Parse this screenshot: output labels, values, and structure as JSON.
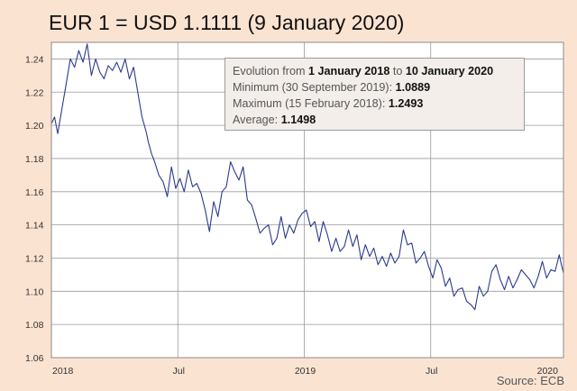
{
  "chart_data": {
    "type": "line",
    "title": "EUR 1 = USD 1.1111 (9 January 2020)",
    "xlabel": "",
    "ylabel": "",
    "ylim": [
      1.06,
      1.25
    ],
    "yticks": [
      "1.06",
      "1.08",
      "1.10",
      "1.12",
      "1.14",
      "1.16",
      "1.18",
      "1.20",
      "1.22",
      "1.24"
    ],
    "xticks": [
      "2018",
      "Jul",
      "2019",
      "Jul",
      "2020"
    ],
    "x_month_range": [
      0,
      24.3
    ],
    "series": [
      {
        "name": "EUR/USD",
        "color": "#2b3a8e",
        "x_month": [
          0,
          0.15,
          0.3,
          0.5,
          0.7,
          0.9,
          1.1,
          1.3,
          1.5,
          1.7,
          1.9,
          2.1,
          2.3,
          2.5,
          2.7,
          2.9,
          3.1,
          3.3,
          3.5,
          3.7,
          3.9,
          4.1,
          4.3,
          4.5,
          4.6,
          4.75,
          4.9,
          5.1,
          5.3,
          5.5,
          5.7,
          5.9,
          6.1,
          6.3,
          6.5,
          6.7,
          6.9,
          7.1,
          7.3,
          7.5,
          7.7,
          7.9,
          8.1,
          8.3,
          8.5,
          8.7,
          8.9,
          9.1,
          9.3,
          9.5,
          9.7,
          9.9,
          10.1,
          10.3,
          10.5,
          10.7,
          10.9,
          11.1,
          11.3,
          11.5,
          11.7,
          11.9,
          12.1,
          12.3,
          12.5,
          12.7,
          12.9,
          13.1,
          13.3,
          13.5,
          13.7,
          13.9,
          14.1,
          14.3,
          14.5,
          14.7,
          14.9,
          15.1,
          15.3,
          15.5,
          15.7,
          15.9,
          16.1,
          16.3,
          16.5,
          16.7,
          16.9,
          17.1,
          17.3,
          17.5,
          17.7,
          17.9,
          18.1,
          18.3,
          18.5,
          18.7,
          18.9,
          19.1,
          19.3,
          19.5,
          19.7,
          19.9,
          20.1,
          20.3,
          20.5,
          20.7,
          20.9,
          21.1,
          21.3,
          21.5,
          21.7,
          21.9,
          22.1,
          22.3,
          22.5,
          22.7,
          22.9,
          23.1,
          23.3,
          23.5,
          23.7,
          23.9,
          24.0,
          24.1,
          24.2,
          24.3
        ],
        "values": [
          1.201,
          1.205,
          1.195,
          1.21,
          1.225,
          1.24,
          1.235,
          1.245,
          1.238,
          1.249,
          1.23,
          1.24,
          1.232,
          1.228,
          1.236,
          1.233,
          1.238,
          1.232,
          1.24,
          1.228,
          1.235,
          1.22,
          1.205,
          1.196,
          1.19,
          1.183,
          1.178,
          1.17,
          1.166,
          1.157,
          1.175,
          1.162,
          1.168,
          1.16,
          1.173,
          1.163,
          1.165,
          1.159,
          1.149,
          1.136,
          1.154,
          1.145,
          1.16,
          1.163,
          1.178,
          1.172,
          1.167,
          1.175,
          1.155,
          1.152,
          1.144,
          1.135,
          1.138,
          1.14,
          1.128,
          1.132,
          1.145,
          1.132,
          1.14,
          1.135,
          1.143,
          1.147,
          1.149,
          1.139,
          1.142,
          1.13,
          1.142,
          1.134,
          1.124,
          1.132,
          1.124,
          1.127,
          1.137,
          1.127,
          1.134,
          1.119,
          1.128,
          1.121,
          1.126,
          1.116,
          1.121,
          1.115,
          1.123,
          1.117,
          1.121,
          1.137,
          1.128,
          1.129,
          1.117,
          1.12,
          1.124,
          1.115,
          1.108,
          1.119,
          1.114,
          1.103,
          1.108,
          1.097,
          1.101,
          1.102,
          1.094,
          1.092,
          1.089,
          1.103,
          1.097,
          1.1,
          1.112,
          1.116,
          1.107,
          1.101,
          1.109,
          1.102,
          1.107,
          1.113,
          1.11,
          1.107,
          1.102,
          1.109,
          1.118,
          1.108,
          1.113,
          1.112,
          1.117,
          1.122,
          1.116,
          1.111
        ]
      }
    ],
    "annotation": {
      "line1_prefix": "Evolution from ",
      "from_date": "1 January 2018",
      "line1_mid": " to ",
      "to_date": "10 January 2020",
      "min_label": "Minimum (30 September 2019): ",
      "min_value": "1.0889",
      "max_label": "Maximum (15 February 2018): ",
      "max_value": "1.2493",
      "avg_label": "Average: ",
      "avg_value": "1.1498"
    },
    "source": "Source: ECB"
  }
}
